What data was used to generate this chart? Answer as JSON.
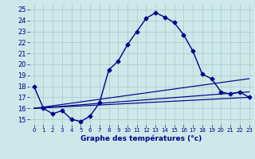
{
  "hours": [
    0,
    1,
    2,
    3,
    4,
    5,
    6,
    7,
    8,
    9,
    10,
    11,
    12,
    13,
    14,
    15,
    16,
    17,
    18,
    19,
    20,
    21,
    22,
    23
  ],
  "temps": [
    18.0,
    16.0,
    15.5,
    15.8,
    15.0,
    14.8,
    15.3,
    16.5,
    19.5,
    20.3,
    21.8,
    23.0,
    24.2,
    24.7,
    24.3,
    23.8,
    22.7,
    21.2,
    19.1,
    18.7,
    17.5,
    17.3,
    17.5,
    17.0
  ],
  "line_color": "#00008B",
  "bg_color": "#cce8e8",
  "grid_color": "#aacfcf",
  "ylabel_vals": [
    15,
    16,
    17,
    18,
    19,
    20,
    21,
    22,
    23,
    24,
    25
  ],
  "xlabel": "Graphe des températures (°c)",
  "ylim": [
    14.5,
    25.5
  ],
  "xlim": [
    -0.5,
    23.5
  ],
  "marker": "D",
  "markersize": 2.5,
  "linewidth": 1.0,
  "trend1_x": [
    0,
    23
  ],
  "trend1_y": [
    16.0,
    17.0
  ],
  "trend2_x": [
    0,
    23
  ],
  "trend2_y": [
    16.0,
    18.7
  ],
  "trend3_x": [
    0,
    23
  ],
  "trend3_y": [
    16.0,
    17.5
  ]
}
